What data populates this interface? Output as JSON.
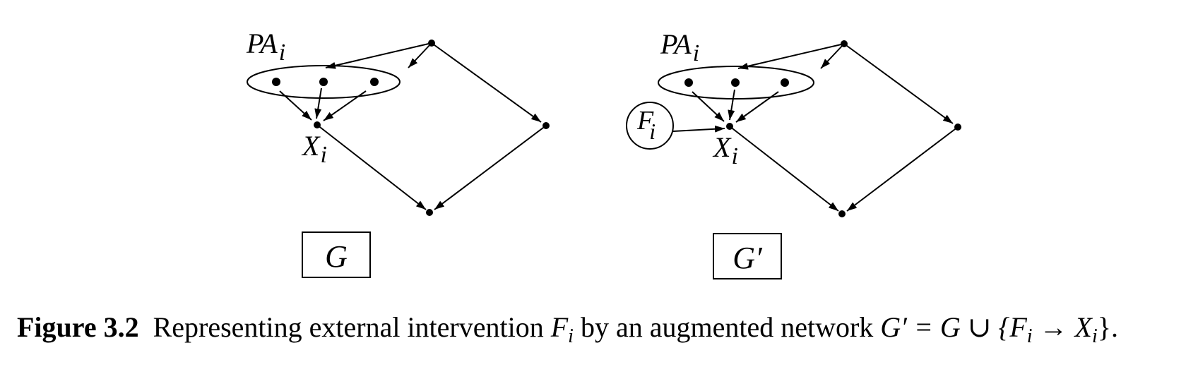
{
  "diagram_left": {
    "parent_set_label": "PA",
    "parent_set_sub": "i",
    "node_label": "X",
    "node_sub": "i",
    "graph_name": "G"
  },
  "diagram_right": {
    "parent_set_label": "PA",
    "parent_set_sub": "i",
    "node_label": "X",
    "node_sub": "i",
    "intervention_label": "F",
    "intervention_sub": "i",
    "graph_name": "G′"
  },
  "caption": {
    "number": "Figure 3.2",
    "text_1": "Representing external intervention",
    "f_var": "F",
    "f_sub": "i",
    "text_2": "by an augmented network",
    "formula_lhs": "G′ = G ∪ {",
    "formula_f": "F",
    "formula_f_sub": "i",
    "formula_arrow": " → ",
    "formula_x": "X",
    "formula_x_sub": "i",
    "formula_end": "}."
  }
}
